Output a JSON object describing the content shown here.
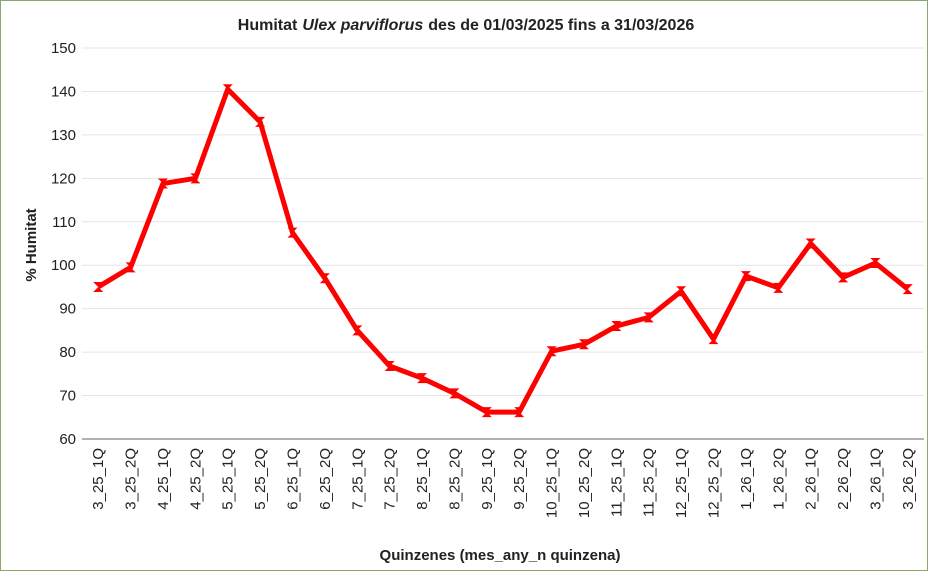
{
  "chart_data": {
    "type": "line",
    "title": [
      "Humitat",
      "Ulex parviflorus",
      "des de 01/03/2025 fins a 31/03/2026"
    ],
    "title_italic": [
      false,
      true,
      false
    ],
    "x_label": "Quinzenes (mes_any_n quinzena)",
    "y_label": "% Humitat",
    "categories": [
      "3_25_1Q",
      "3_25_2Q",
      "4_25_1Q",
      "4_25_2Q",
      "5_25_1Q",
      "5_25_2Q",
      "6_25_1Q",
      "6_25_2Q",
      "7_25_1Q",
      "7_25_2Q",
      "8_25_1Q",
      "8_25_2Q",
      "9_25_1Q",
      "9_25_2Q",
      "10_25_1Q",
      "10_25_2Q",
      "11_25_1Q",
      "11_25_2Q",
      "12_25_1Q",
      "12_25_2Q",
      "1_26_1Q",
      "1_26_2Q",
      "2_26_1Q",
      "2_26_2Q",
      "3_26_1Q",
      "3_26_2Q"
    ],
    "values": [
      95,
      99.5,
      118.8,
      120,
      140.5,
      133,
      107.5,
      97,
      85,
      76.8,
      74,
      70.5,
      66.2,
      66.2,
      80.2,
      81.8,
      86,
      88,
      94,
      83,
      97.5,
      94.8,
      105,
      97.2,
      100.5,
      94.5
    ],
    "color": "#ff0000",
    "ylim": [
      60,
      150
    ],
    "yticks": [
      60,
      70,
      80,
      90,
      100,
      110,
      120,
      130,
      140,
      150
    ],
    "grid": true
  }
}
